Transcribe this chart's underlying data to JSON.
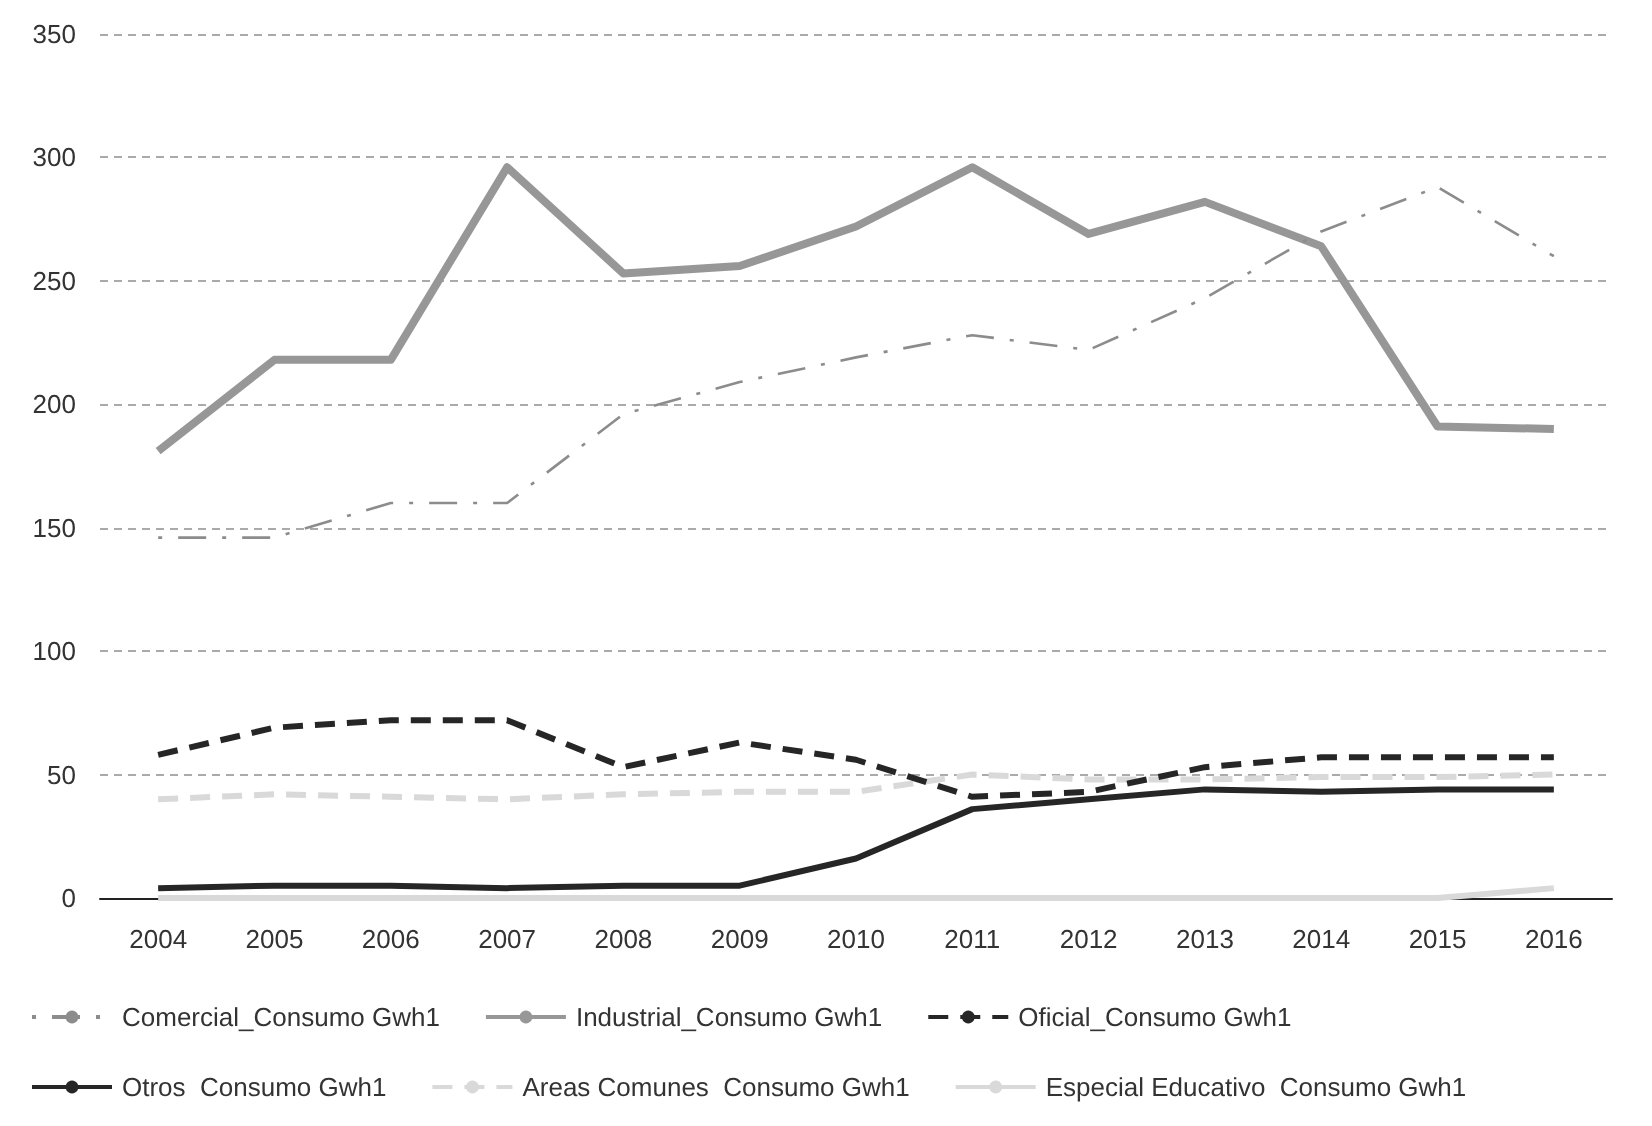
{
  "chart_data": {
    "type": "line",
    "categories": [
      "2004",
      "2005",
      "2006",
      "2007",
      "2008",
      "2009",
      "2010",
      "2011",
      "2012",
      "2013",
      "2014",
      "2015",
      "2016"
    ],
    "series": [
      {
        "name": "Comercial_Consumo Gwh1",
        "color": "#8c8c8c",
        "line_style": "dashed",
        "values": [
          146,
          146,
          160,
          160,
          196,
          209,
          219,
          228,
          222,
          243,
          270,
          288,
          260
        ]
      },
      {
        "name": "Industrial_Consumo Gwh1",
        "color": "#979797",
        "line_style": "solid",
        "values": [
          181,
          218,
          218,
          296,
          253,
          256,
          272,
          296,
          269,
          282,
          264,
          191,
          190
        ]
      },
      {
        "name": "Oficial_Consumo Gwh1",
        "color": "#262626",
        "line_style": "dashed",
        "values": [
          58,
          69,
          72,
          72,
          53,
          63,
          56,
          41,
          43,
          53,
          57,
          57,
          57
        ]
      },
      {
        "name": "Otros  Consumo Gwh1",
        "color": "#262626",
        "line_style": "solid",
        "values": [
          4,
          5,
          5,
          4,
          5,
          5,
          16,
          36,
          40,
          44,
          43,
          44,
          44
        ]
      },
      {
        "name": "Areas Comunes  Consumo Gwh1",
        "color": "#d9d9d9",
        "line_style": "dashed",
        "values": [
          40,
          42,
          41,
          40,
          42,
          43,
          43,
          50,
          48,
          48,
          49,
          49,
          50
        ]
      },
      {
        "name": "Especial Educativo  Consumo Gwh1",
        "color": "#d9d9d9",
        "line_style": "solid",
        "values": [
          0,
          0,
          0,
          0,
          0,
          0,
          0,
          0,
          0,
          0,
          0,
          0,
          4
        ]
      }
    ],
    "ylim": [
      0,
      350
    ],
    "yticks": [
      0,
      50,
      100,
      150,
      200,
      250,
      300,
      350
    ],
    "grid": "y",
    "legend": "bottom",
    "marker": "none"
  }
}
